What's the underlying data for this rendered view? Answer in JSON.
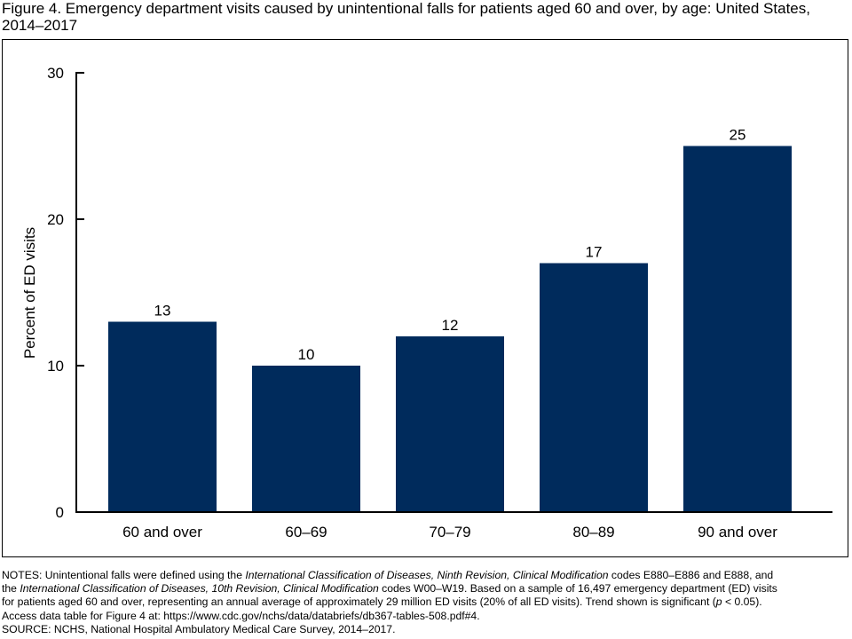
{
  "title": "Figure 4. Emergency department visits caused by unintentional falls for patients aged 60 and over, by age: United States, 2014–2017",
  "chart_data": {
    "type": "bar",
    "categories": [
      "60 and over",
      "60–69",
      "70–79",
      "80–89",
      "90 and over"
    ],
    "values": [
      13,
      10,
      12,
      17,
      25
    ],
    "data_labels": [
      "13",
      "10",
      "12",
      "17",
      "25"
    ],
    "ylabel": "Percent of ED visits",
    "xlabel": "",
    "ylim": [
      0,
      30
    ],
    "yticks": [
      0,
      10,
      20,
      30
    ],
    "ytick_labels": [
      "0",
      "10",
      "20",
      "30"
    ],
    "grid": false,
    "bar_color": "#002b5c"
  },
  "notes": {
    "l1_a": "NOTES: Unintentional falls were defined using the ",
    "l1_b": "International Classification of Diseases, Ninth Revision, Clinical Modification",
    "l1_c": " codes E880–E886 and E888, and",
    "l2_a": "the ",
    "l2_b": "International Classification of Diseases, 10th Revision, Clinical Modification",
    "l2_c": " codes W00–W19. Based on a sample of 16,497 emergency department (ED) visits",
    "l3_a": "for patients aged 60 and over, representing an annual average of approximately 29 million ED visits (20% of all ED visits). Trend shown is significant (",
    "l3_b": "p",
    "l3_c": " < 0.05).",
    "l4": "Access data table for Figure 4 at: https://www.cdc.gov/nchs/data/databriefs/db367-tables-508.pdf#4.",
    "l5": "SOURCE: NCHS, National Hospital Ambulatory Medical Care Survey, 2014–2017."
  }
}
